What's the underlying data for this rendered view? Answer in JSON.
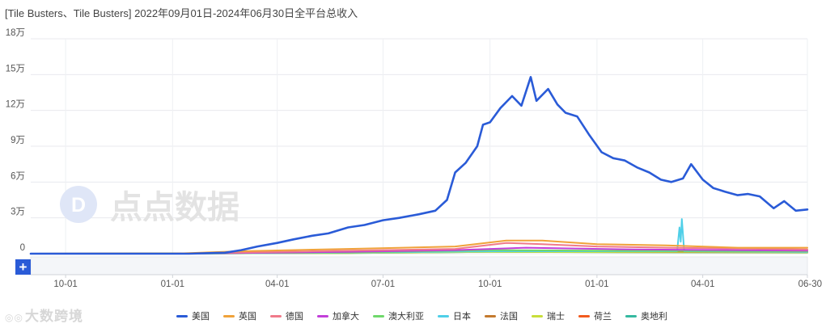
{
  "title": "[Tile Busters、Tile Busters]  2022年09月01日-2024年06月30日全平台总收入",
  "watermark_center": "点点数据",
  "watermark_bottom": "大数跨境",
  "zoom_button": "+",
  "chart_data": {
    "type": "line",
    "title": "[Tile Busters、Tile Busters]  2022年09月01日-2024年06月30日全平台总收入",
    "xlabel": "",
    "ylabel": "",
    "ylim": [
      0,
      180000
    ],
    "y_ticks": [
      {
        "value": 0,
        "label": "0"
      },
      {
        "value": 30000,
        "label": "3万"
      },
      {
        "value": 60000,
        "label": "6万"
      },
      {
        "value": 90000,
        "label": "9万"
      },
      {
        "value": 120000,
        "label": "12万"
      },
      {
        "value": 150000,
        "label": "15万"
      },
      {
        "value": 180000,
        "label": "18万"
      }
    ],
    "x_range": [
      "2022-09-01",
      "2024-06-30"
    ],
    "x_ticks": [
      {
        "date": "2022-10-01",
        "label": "10-01"
      },
      {
        "date": "2023-01-01",
        "label": "01-01"
      },
      {
        "date": "2023-04-01",
        "label": "04-01"
      },
      {
        "date": "2023-07-01",
        "label": "07-01"
      },
      {
        "date": "2023-10-01",
        "label": "10-01"
      },
      {
        "date": "2024-01-01",
        "label": "01-01"
      },
      {
        "date": "2024-04-01",
        "label": "04-01"
      },
      {
        "date": "2024-06-30",
        "label": "06-30"
      }
    ],
    "grid": true,
    "legend_position": "bottom",
    "series": [
      {
        "name": "美国",
        "color": "#2a5bd7",
        "points": [
          [
            "2022-09-01",
            0
          ],
          [
            "2022-12-01",
            0
          ],
          [
            "2023-01-15",
            0
          ],
          [
            "2023-02-15",
            800
          ],
          [
            "2023-03-01",
            3000
          ],
          [
            "2023-03-15",
            6000
          ],
          [
            "2023-04-01",
            9000
          ],
          [
            "2023-04-15",
            12000
          ],
          [
            "2023-05-01",
            15000
          ],
          [
            "2023-05-15",
            17000
          ],
          [
            "2023-06-01",
            22000
          ],
          [
            "2023-06-15",
            24000
          ],
          [
            "2023-07-01",
            28000
          ],
          [
            "2023-07-15",
            30000
          ],
          [
            "2023-08-01",
            33000
          ],
          [
            "2023-08-15",
            36000
          ],
          [
            "2023-08-25",
            45000
          ],
          [
            "2023-09-01",
            68000
          ],
          [
            "2023-09-10",
            76000
          ],
          [
            "2023-09-20",
            90000
          ],
          [
            "2023-09-25",
            108000
          ],
          [
            "2023-10-01",
            110000
          ],
          [
            "2023-10-10",
            122000
          ],
          [
            "2023-10-20",
            132000
          ],
          [
            "2023-10-28",
            124000
          ],
          [
            "2023-11-05",
            148000
          ],
          [
            "2023-11-10",
            128000
          ],
          [
            "2023-11-20",
            138000
          ],
          [
            "2023-11-28",
            125000
          ],
          [
            "2023-12-05",
            118000
          ],
          [
            "2023-12-15",
            115000
          ],
          [
            "2023-12-25",
            100000
          ],
          [
            "2024-01-05",
            85000
          ],
          [
            "2024-01-15",
            80000
          ],
          [
            "2024-01-25",
            78000
          ],
          [
            "2024-02-05",
            72000
          ],
          [
            "2024-02-15",
            68000
          ],
          [
            "2024-02-25",
            62000
          ],
          [
            "2024-03-05",
            60000
          ],
          [
            "2024-03-15",
            63000
          ],
          [
            "2024-03-22",
            75000
          ],
          [
            "2024-04-01",
            62000
          ],
          [
            "2024-04-10",
            55000
          ],
          [
            "2024-04-20",
            52000
          ],
          [
            "2024-05-01",
            49000
          ],
          [
            "2024-05-10",
            50000
          ],
          [
            "2024-05-20",
            48000
          ],
          [
            "2024-06-01",
            38000
          ],
          [
            "2024-06-10",
            44000
          ],
          [
            "2024-06-20",
            36000
          ],
          [
            "2024-06-30",
            37000
          ]
        ]
      },
      {
        "name": "英国",
        "color": "#f0a23a",
        "points": [
          [
            "2022-09-01",
            0
          ],
          [
            "2023-01-01",
            0
          ],
          [
            "2023-03-01",
            2000
          ],
          [
            "2023-06-01",
            4000
          ],
          [
            "2023-09-01",
            6000
          ],
          [
            "2023-10-15",
            11000
          ],
          [
            "2023-11-15",
            11000
          ],
          [
            "2024-01-01",
            8000
          ],
          [
            "2024-03-01",
            7000
          ],
          [
            "2024-05-01",
            5000
          ],
          [
            "2024-06-30",
            5000
          ]
        ]
      },
      {
        "name": "德国",
        "color": "#f07a8a",
        "points": [
          [
            "2022-09-01",
            0
          ],
          [
            "2023-01-01",
            0
          ],
          [
            "2023-05-01",
            2000
          ],
          [
            "2023-09-01",
            4000
          ],
          [
            "2023-10-15",
            9000
          ],
          [
            "2023-11-15",
            8000
          ],
          [
            "2024-01-01",
            6000
          ],
          [
            "2024-03-01",
            5000
          ],
          [
            "2024-06-30",
            3500
          ]
        ]
      },
      {
        "name": "加拿大",
        "color": "#c23fd9",
        "points": [
          [
            "2022-09-01",
            0
          ],
          [
            "2023-01-01",
            0
          ],
          [
            "2023-06-01",
            1500
          ],
          [
            "2023-09-01",
            3000
          ],
          [
            "2023-11-01",
            5000
          ],
          [
            "2024-02-01",
            3500
          ],
          [
            "2024-06-30",
            2500
          ]
        ]
      },
      {
        "name": "澳大利亚",
        "color": "#6fd86b",
        "points": [
          [
            "2022-09-01",
            0
          ],
          [
            "2023-01-01",
            0
          ],
          [
            "2023-06-01",
            1000
          ],
          [
            "2023-10-01",
            3000
          ],
          [
            "2024-01-01",
            2500
          ],
          [
            "2024-06-30",
            2000
          ]
        ]
      },
      {
        "name": "日本",
        "color": "#4fcfe8",
        "points": [
          [
            "2022-09-01",
            0
          ],
          [
            "2023-01-01",
            0
          ],
          [
            "2023-06-01",
            800
          ],
          [
            "2023-10-01",
            2000
          ],
          [
            "2024-03-10",
            2000
          ],
          [
            "2024-03-12",
            22000
          ],
          [
            "2024-03-13",
            10000
          ],
          [
            "2024-03-14",
            29000
          ],
          [
            "2024-03-16",
            2000
          ],
          [
            "2024-06-30",
            1500
          ]
        ]
      },
      {
        "name": "法国",
        "color": "#c47a2e",
        "points": [
          [
            "2022-09-01",
            0
          ],
          [
            "2023-01-01",
            0
          ],
          [
            "2023-06-01",
            800
          ],
          [
            "2023-10-01",
            2500
          ],
          [
            "2024-01-01",
            2000
          ],
          [
            "2024-06-30",
            1500
          ]
        ]
      },
      {
        "name": "瑞士",
        "color": "#c8de3a",
        "points": [
          [
            "2022-09-01",
            0
          ],
          [
            "2023-06-01",
            500
          ],
          [
            "2023-10-01",
            1500
          ],
          [
            "2024-06-30",
            1000
          ]
        ]
      },
      {
        "name": "荷兰",
        "color": "#f25a1e",
        "points": [
          [
            "2022-09-01",
            0
          ],
          [
            "2023-06-01",
            600
          ],
          [
            "2023-10-01",
            2000
          ],
          [
            "2024-02-01",
            1500
          ],
          [
            "2024-06-30",
            1000
          ]
        ]
      },
      {
        "name": "奥地利",
        "color": "#35b9a0",
        "points": [
          [
            "2022-09-01",
            0
          ],
          [
            "2023-06-01",
            500
          ],
          [
            "2023-10-01",
            1500
          ],
          [
            "2024-06-30",
            800
          ]
        ]
      }
    ]
  }
}
